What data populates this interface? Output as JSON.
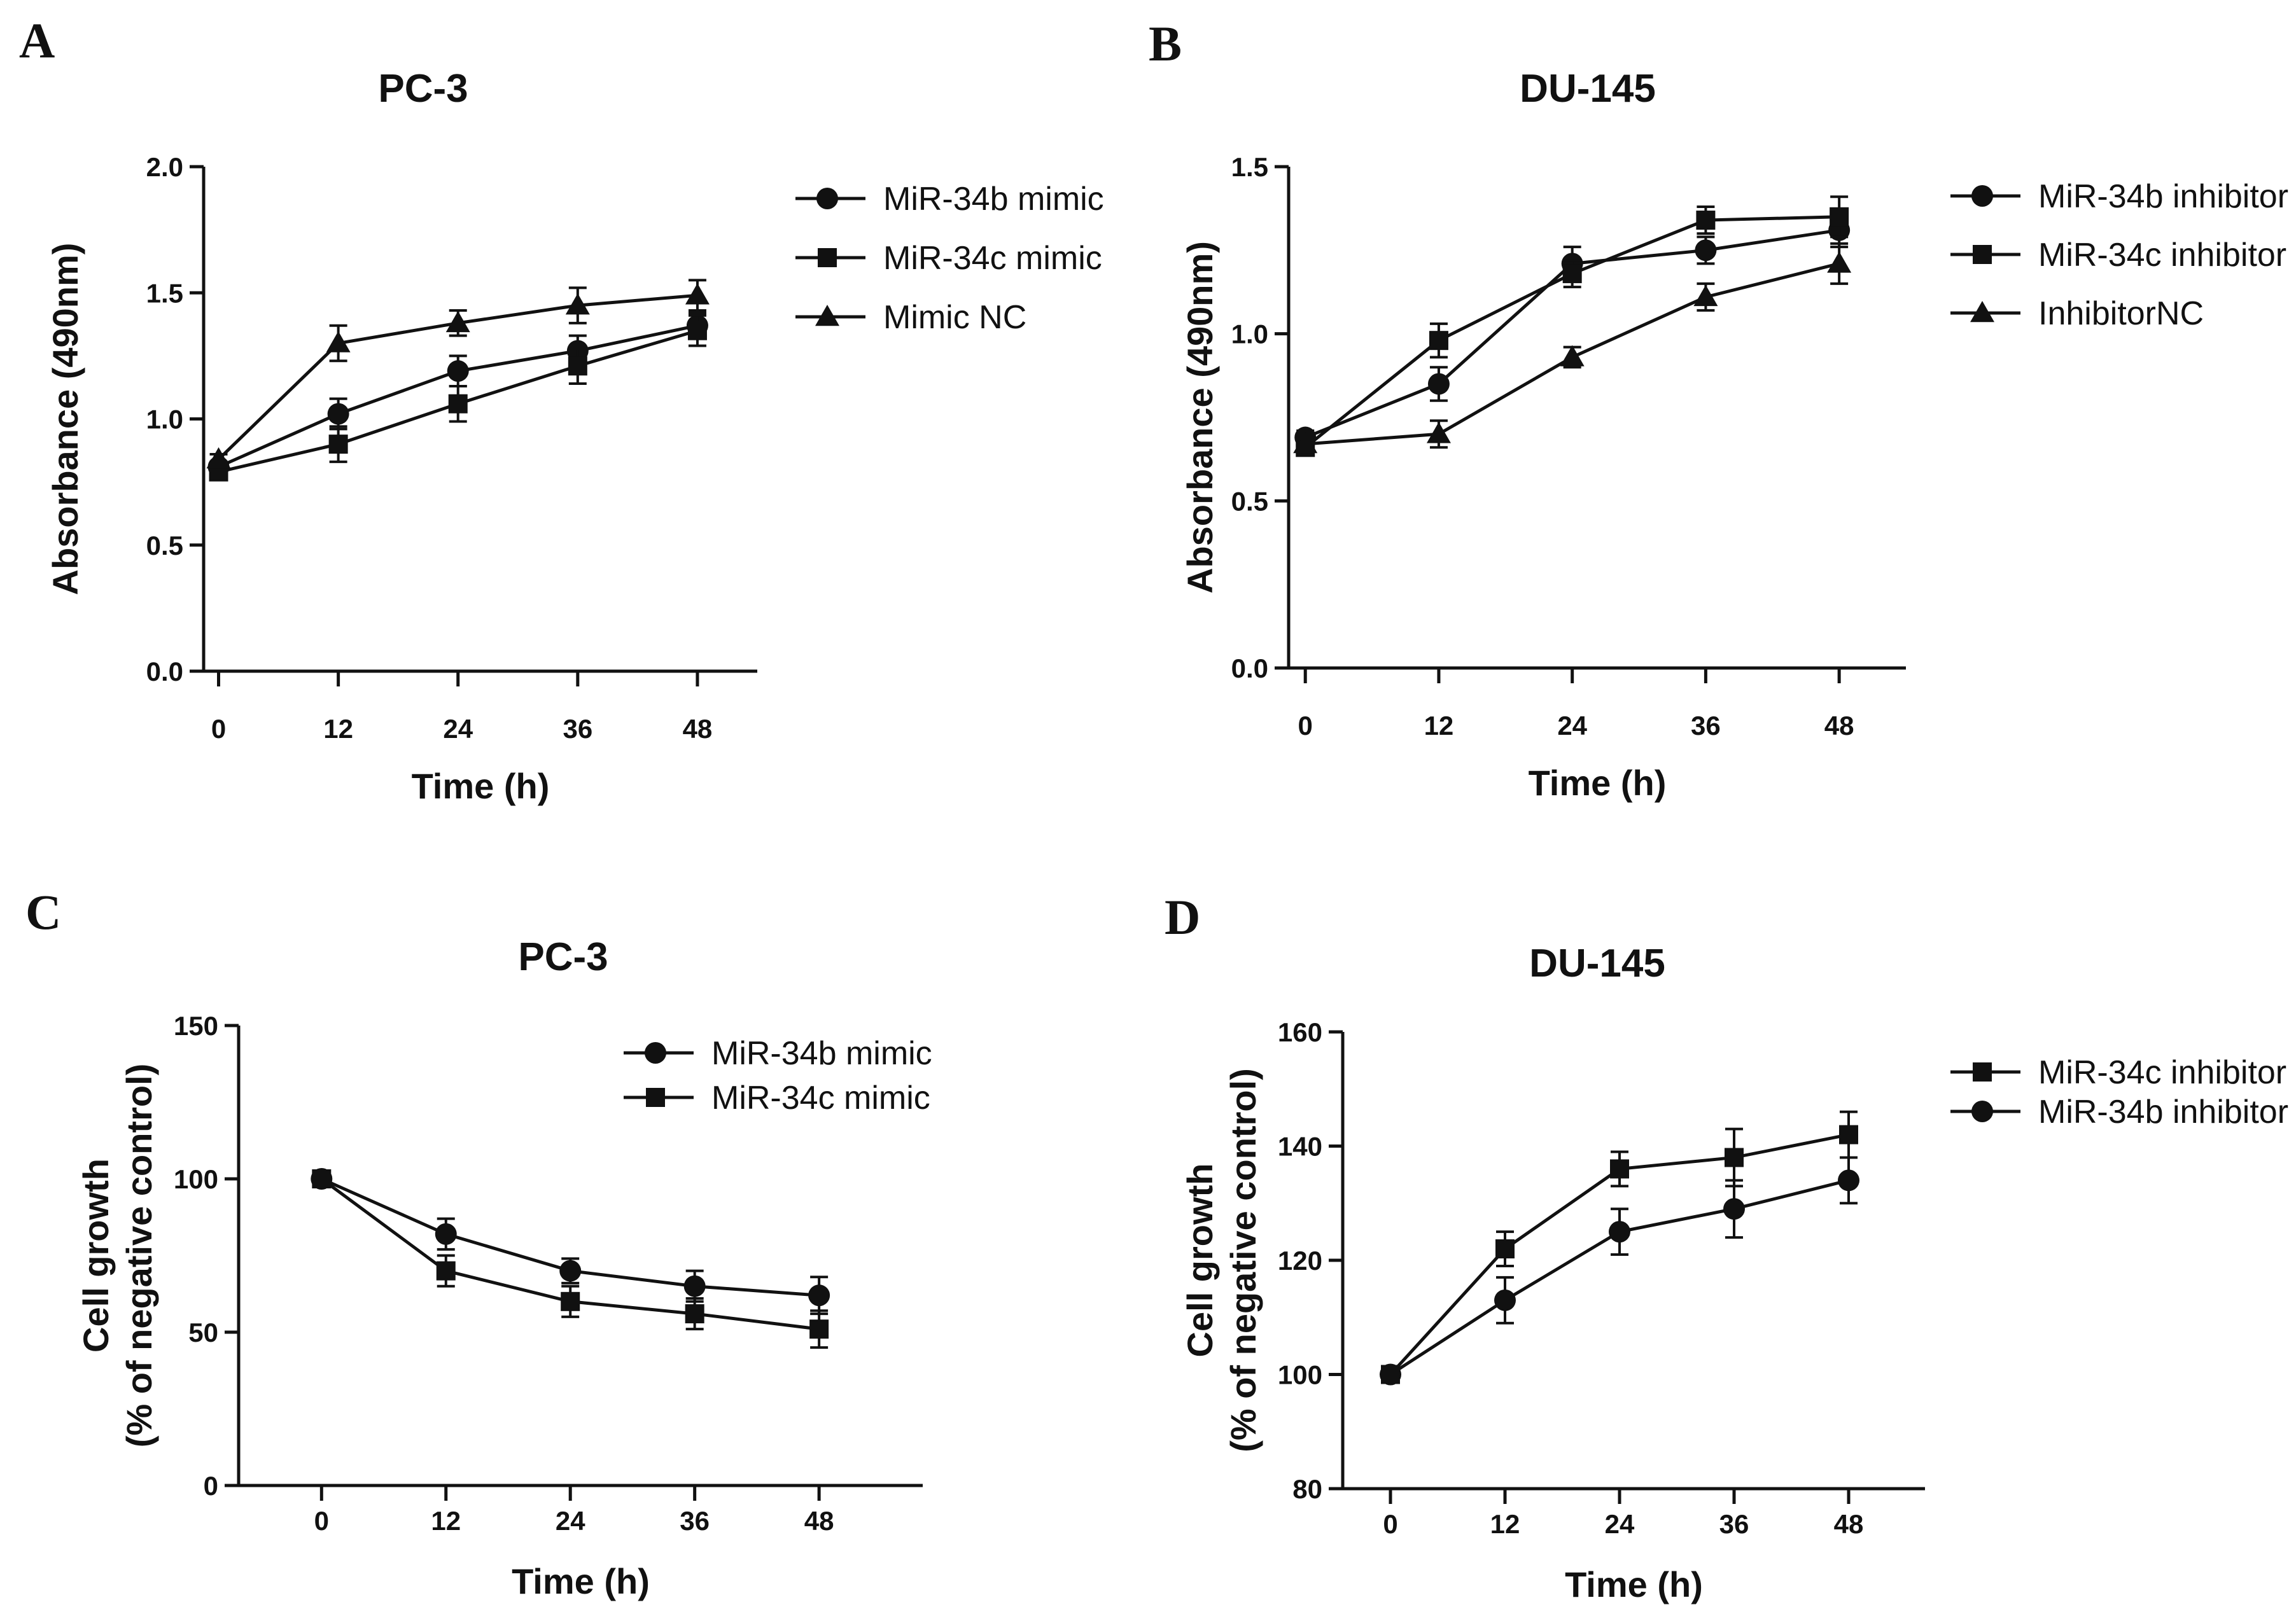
{
  "chart_data": [
    {
      "panel": "A",
      "type": "line",
      "title": "PC-3",
      "xlabel": "Time (h)",
      "ylabel": "Absorbance (490nm)",
      "x": [
        0,
        12,
        24,
        36,
        48
      ],
      "xticks": [
        0,
        12,
        24,
        36,
        48
      ],
      "xlim": [
        -1.5,
        54
      ],
      "ylim": [
        0,
        2.0
      ],
      "yticks": [
        0,
        0.5,
        1.0,
        1.5,
        2.0
      ],
      "ytick_labels": [
        "0.0",
        "0.5",
        "1.0",
        "1.5",
        "2.0"
      ],
      "legend_position": "top-right",
      "series": [
        {
          "name": "MiR-34b mimic",
          "marker": "circle",
          "values": [
            0.81,
            1.02,
            1.19,
            1.27,
            1.37
          ],
          "errors": [
            0.02,
            0.06,
            0.06,
            0.06,
            0.05
          ]
        },
        {
          "name": "MiR-34c mimic",
          "marker": "square",
          "values": [
            0.79,
            0.9,
            1.06,
            1.21,
            1.35
          ],
          "errors": [
            0.02,
            0.07,
            0.07,
            0.07,
            0.06
          ]
        },
        {
          "name": "Mimic NC",
          "marker": "triangle",
          "values": [
            0.84,
            1.3,
            1.38,
            1.45,
            1.49
          ],
          "errors": [
            0.02,
            0.07,
            0.05,
            0.07,
            0.06
          ]
        }
      ]
    },
    {
      "panel": "B",
      "type": "line",
      "title": "DU-145",
      "xlabel": "Time (h)",
      "ylabel": "Absorbance (490nm)",
      "x": [
        0,
        12,
        24,
        36,
        48
      ],
      "xticks": [
        0,
        12,
        24,
        36,
        48
      ],
      "xlim": [
        -1.5,
        54
      ],
      "ylim": [
        0,
        1.5
      ],
      "yticks": [
        0,
        0.5,
        1.0,
        1.5
      ],
      "ytick_labels": [
        "0.0",
        "0.5",
        "1.0",
        "1.5"
      ],
      "legend_position": "top-right",
      "series": [
        {
          "name": "MiR-34b inhibitor",
          "marker": "circle",
          "values": [
            0.69,
            0.85,
            1.21,
            1.25,
            1.31
          ],
          "errors": [
            0.02,
            0.05,
            0.05,
            0.04,
            0.05
          ]
        },
        {
          "name": "MiR-34c inhibitor",
          "marker": "square",
          "values": [
            0.66,
            0.98,
            1.18,
            1.34,
            1.35
          ],
          "errors": [
            0.02,
            0.05,
            0.04,
            0.04,
            0.06
          ]
        },
        {
          "name": "InhibitorNC",
          "marker": "triangle",
          "values": [
            0.67,
            0.7,
            0.93,
            1.11,
            1.21
          ],
          "errors": [
            0.02,
            0.04,
            0.03,
            0.04,
            0.06
          ]
        }
      ]
    },
    {
      "panel": "C",
      "type": "line",
      "title": "PC-3",
      "xlabel": "Time (h)",
      "ylabel_lines": [
        "Cell growth",
        "(% of negative control)"
      ],
      "x": [
        0,
        12,
        24,
        36,
        48
      ],
      "xticks": [
        0,
        12,
        24,
        36,
        48
      ],
      "xlim": [
        -8,
        58
      ],
      "ylim": [
        0,
        150
      ],
      "yticks": [
        0,
        50,
        100,
        150
      ],
      "ytick_labels": [
        "0",
        "50",
        "100",
        "150"
      ],
      "legend_position": "top-right",
      "series": [
        {
          "name": "MiR-34b mimic",
          "marker": "circle",
          "values": [
            100,
            82,
            70,
            65,
            62
          ],
          "errors": [
            0,
            5,
            4,
            5,
            6
          ]
        },
        {
          "name": "MiR-34c mimic",
          "marker": "square",
          "values": [
            100,
            70,
            60,
            56,
            51
          ],
          "errors": [
            0,
            5,
            5,
            5,
            6
          ]
        }
      ]
    },
    {
      "panel": "D",
      "type": "line",
      "title": "DU-145",
      "xlabel": "Time (h)",
      "ylabel_lines": [
        "Cell growth",
        "(% of negative control)"
      ],
      "x": [
        0,
        12,
        24,
        36,
        48
      ],
      "xticks": [
        0,
        12,
        24,
        36,
        48
      ],
      "xlim": [
        -5,
        56
      ],
      "ylim": [
        80,
        160
      ],
      "yticks": [
        80,
        100,
        120,
        140,
        160
      ],
      "ytick_labels": [
        "80",
        "100",
        "120",
        "140",
        "160"
      ],
      "legend_position": "top-right",
      "series": [
        {
          "name": "MiR-34c inhibitor",
          "marker": "square",
          "values": [
            100,
            122,
            136,
            138,
            142
          ],
          "errors": [
            0,
            3,
            3,
            5,
            4
          ]
        },
        {
          "name": "MiR-34b inhibitor",
          "marker": "circle",
          "values": [
            100,
            113,
            125,
            129,
            134
          ],
          "errors": [
            0,
            4,
            4,
            5,
            4
          ]
        }
      ]
    }
  ]
}
